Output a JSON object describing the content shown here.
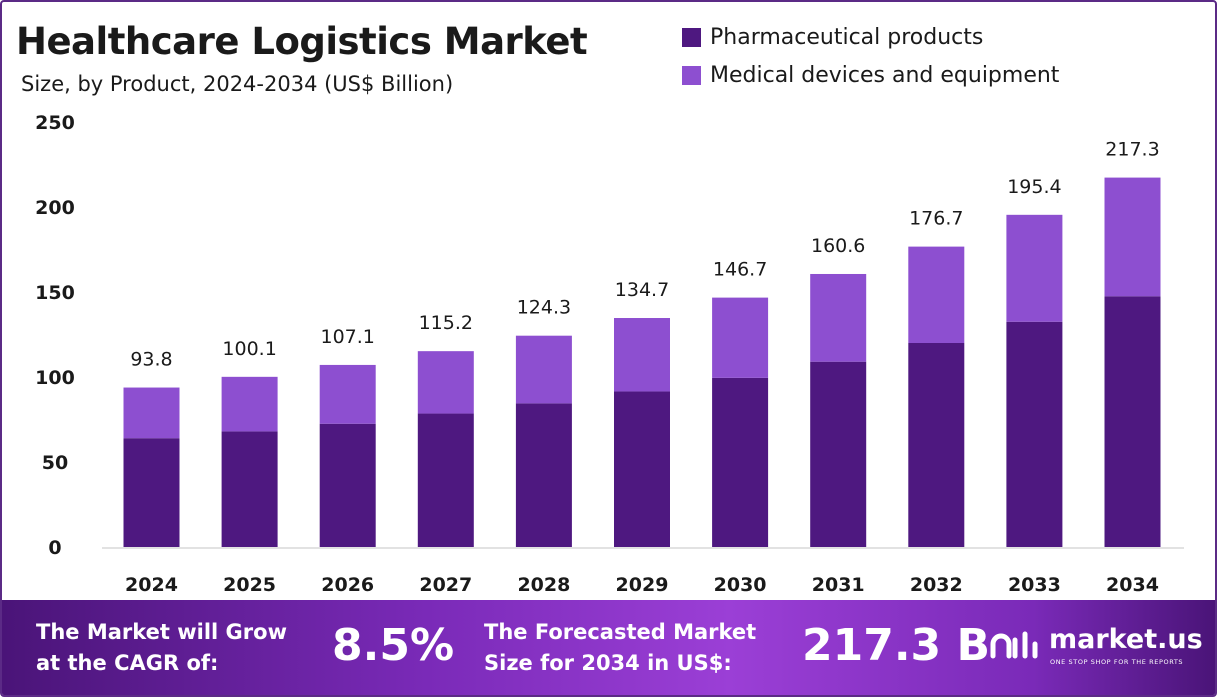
{
  "title": "Healthcare Logistics Market",
  "subtitle": "Size, by Product, 2024-2034 (US$ Billion)",
  "colors": {
    "pharmaceutical": "#4e1880",
    "medical": "#8d4fd0",
    "axis_line": "#d8d8d8",
    "text": "#1a1a1a"
  },
  "legend": [
    {
      "label": "Pharmaceutical products",
      "color": "#4e1880"
    },
    {
      "label": "Medical devices and equipment",
      "color": "#8d4fd0"
    }
  ],
  "chart_data": {
    "type": "bar",
    "stacked": true,
    "categories": [
      "2024",
      "2025",
      "2026",
      "2027",
      "2028",
      "2029",
      "2030",
      "2031",
      "2032",
      "2033",
      "2034"
    ],
    "series": [
      {
        "name": "Pharmaceutical products",
        "values": [
          64.0,
          68.0,
          72.5,
          78.5,
          84.5,
          91.5,
          99.5,
          109.0,
          120.0,
          132.5,
          147.5
        ]
      },
      {
        "name": "Medical devices and equipment",
        "values": [
          29.8,
          32.1,
          34.6,
          36.7,
          39.8,
          43.2,
          47.2,
          51.6,
          56.7,
          62.9,
          69.8
        ]
      }
    ],
    "totals": [
      "93.8",
      "100.1",
      "107.1",
      "115.2",
      "124.3",
      "134.7",
      "146.7",
      "160.6",
      "176.7",
      "195.4",
      "217.3"
    ],
    "ylim": [
      0,
      250
    ],
    "yticks": [
      "0",
      "50",
      "100",
      "150",
      "200",
      "250"
    ],
    "grid": false,
    "legend_position": "top-right"
  },
  "footer": {
    "cagr_text_line1": "The Market will Grow",
    "cagr_text_line2": "at the CAGR of:",
    "cagr_value": "8.5%",
    "forecast_text_line1": "The Forecasted Market",
    "forecast_text_line2": "Size for 2034 in US$:",
    "forecast_value": "217.3 B",
    "brand_name": "market.us",
    "brand_tagline": "ONE STOP SHOP FOR THE REPORTS"
  }
}
